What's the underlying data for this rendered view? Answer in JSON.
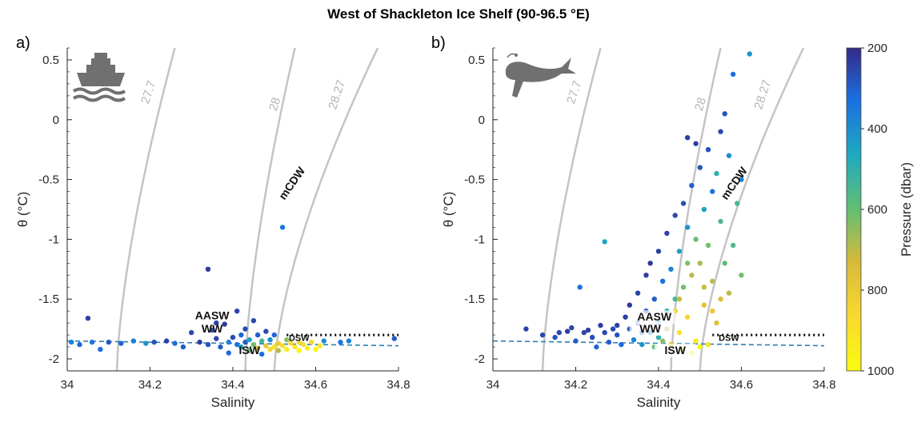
{
  "figure": {
    "title": "West of Shackleton Ice Shelf (90-96.5 °E)"
  },
  "colorbar": {
    "label": "Pressure (dbar)",
    "ticks": [
      "200",
      "400",
      "600",
      "800",
      "1000"
    ],
    "range": [
      200,
      1000
    ],
    "colormap": "parula",
    "colors": [
      "#352a87",
      "#1b6fe0",
      "#1ea9c0",
      "#62bf72",
      "#d6b93c",
      "#f9d92e",
      "#f9fb0e"
    ]
  },
  "icons": {
    "panel_a": "ship-icon",
    "panel_b": "seal-icon"
  },
  "chart_data": [
    {
      "type": "scatter",
      "panel": "a)",
      "platform_icon": "ship-icon",
      "xlabel": "Salinity",
      "ylabel": "θ (°C)",
      "xlim": [
        34,
        34.8
      ],
      "ylim": [
        -2.1,
        0.6
      ],
      "xticks": [
        "34",
        "34.2",
        "34.4",
        "34.6",
        "34.8"
      ],
      "yticks": [
        "-2",
        "-1.5",
        "-1",
        "-0.5",
        "0",
        "0.5"
      ],
      "grid": false,
      "isopycnals": [
        "27.7",
        "28",
        "28.27"
      ],
      "water_masses": [
        "mCDW",
        "AASW",
        "WW",
        "ISW",
        "DSW"
      ],
      "reference_lines": [
        {
          "name": "freezing point",
          "style": "dashed",
          "color": "#2a7fb8",
          "x": [
            34.0,
            34.8
          ],
          "y": [
            -1.85,
            -1.89
          ]
        },
        {
          "name": "surface freezing threshold",
          "style": "dotted",
          "color": "#000000",
          "x": [
            34.53,
            34.8
          ],
          "y": [
            -1.8,
            -1.8
          ]
        }
      ],
      "points": [
        [
          34.01,
          -1.86,
          380
        ],
        [
          34.03,
          -1.88,
          320
        ],
        [
          34.05,
          -1.66,
          240
        ],
        [
          34.06,
          -1.86,
          350
        ],
        [
          34.08,
          -1.92,
          330
        ],
        [
          34.1,
          -1.86,
          290
        ],
        [
          34.13,
          -1.87,
          310
        ],
        [
          34.16,
          -1.85,
          360
        ],
        [
          34.19,
          -1.87,
          420
        ],
        [
          34.21,
          -1.86,
          280
        ],
        [
          34.24,
          -1.85,
          250
        ],
        [
          34.26,
          -1.87,
          330
        ],
        [
          34.28,
          -1.9,
          300
        ],
        [
          34.3,
          -1.78,
          260
        ],
        [
          34.32,
          -1.86,
          240
        ],
        [
          34.34,
          -1.25,
          230
        ],
        [
          34.34,
          -1.88,
          280
        ],
        [
          34.36,
          -1.83,
          250
        ],
        [
          34.37,
          -1.9,
          300
        ],
        [
          34.38,
          -1.71,
          230
        ],
        [
          34.39,
          -1.95,
          330
        ],
        [
          34.4,
          -1.82,
          260
        ],
        [
          34.41,
          -1.6,
          250
        ],
        [
          34.41,
          -1.88,
          350
        ],
        [
          34.42,
          -1.9,
          450
        ],
        [
          34.43,
          -1.75,
          270
        ],
        [
          34.43,
          -1.86,
          300
        ],
        [
          34.44,
          -1.93,
          600
        ],
        [
          34.45,
          -1.68,
          260
        ],
        [
          34.45,
          -1.88,
          620
        ],
        [
          34.46,
          -1.91,
          750
        ],
        [
          34.46,
          -1.8,
          300
        ],
        [
          34.47,
          -1.85,
          540
        ],
        [
          34.47,
          -1.96,
          330
        ],
        [
          34.48,
          -1.89,
          800
        ],
        [
          34.48,
          -1.77,
          260
        ],
        [
          34.49,
          -1.92,
          850
        ],
        [
          34.49,
          -1.84,
          400
        ],
        [
          34.5,
          -1.9,
          900
        ],
        [
          34.5,
          -1.8,
          320
        ],
        [
          34.51,
          -1.87,
          820
        ],
        [
          34.51,
          -1.93,
          700
        ],
        [
          34.52,
          -0.9,
          350
        ],
        [
          34.52,
          -1.89,
          880
        ],
        [
          34.53,
          -1.84,
          650
        ],
        [
          34.53,
          -1.92,
          950
        ],
        [
          34.54,
          -1.87,
          880
        ],
        [
          34.55,
          -1.9,
          920
        ],
        [
          34.56,
          -1.86,
          850
        ],
        [
          34.56,
          -1.93,
          980
        ],
        [
          34.57,
          -1.88,
          900
        ],
        [
          34.58,
          -1.91,
          960
        ],
        [
          34.59,
          -1.86,
          870
        ],
        [
          34.6,
          -1.92,
          990
        ],
        [
          34.61,
          -1.89,
          930
        ],
        [
          34.62,
          -1.85,
          400
        ],
        [
          34.66,
          -1.86,
          350
        ],
        [
          34.68,
          -1.85,
          380
        ],
        [
          34.79,
          -1.83,
          300
        ],
        [
          34.36,
          -1.7,
          240
        ],
        [
          34.35,
          -1.76,
          260
        ],
        [
          34.44,
          -1.84,
          450
        ],
        [
          34.42,
          -1.8,
          320
        ],
        [
          34.39,
          -1.86,
          380
        ]
      ]
    },
    {
      "type": "scatter",
      "panel": "b)",
      "platform_icon": "seal-icon",
      "xlabel": "Salinity",
      "ylabel": "θ (°C)",
      "xlim": [
        34,
        34.8
      ],
      "ylim": [
        -2.1,
        0.6
      ],
      "xticks": [
        "34",
        "34.2",
        "34.4",
        "34.6",
        "34.8"
      ],
      "yticks": [
        "-2",
        "-1.5",
        "-1",
        "-0.5",
        "0",
        "0.5"
      ],
      "grid": false,
      "isopycnals": [
        "27.7",
        "28",
        "28.27"
      ],
      "water_masses": [
        "mCDW",
        "AASW",
        "WW",
        "ISW",
        "DSW"
      ],
      "reference_lines": [
        {
          "name": "freezing point",
          "style": "dashed",
          "color": "#2a7fb8",
          "x": [
            34.0,
            34.8
          ],
          "y": [
            -1.85,
            -1.89
          ]
        },
        {
          "name": "surface freezing threshold",
          "style": "dotted",
          "color": "#000000",
          "x": [
            34.53,
            34.8
          ],
          "y": [
            -1.8,
            -1.8
          ]
        }
      ],
      "points": [
        [
          34.08,
          -1.75,
          250
        ],
        [
          34.12,
          -1.8,
          260
        ],
        [
          34.15,
          -1.82,
          280
        ],
        [
          34.18,
          -1.77,
          240
        ],
        [
          34.2,
          -1.85,
          300
        ],
        [
          34.21,
          -1.4,
          350
        ],
        [
          34.22,
          -1.78,
          250
        ],
        [
          34.24,
          -1.82,
          270
        ],
        [
          34.25,
          -1.9,
          320
        ],
        [
          34.26,
          -1.72,
          240
        ],
        [
          34.27,
          -1.02,
          450
        ],
        [
          34.28,
          -1.86,
          300
        ],
        [
          34.29,
          -1.75,
          260
        ],
        [
          34.3,
          -1.8,
          280
        ],
        [
          34.31,
          -1.88,
          330
        ],
        [
          34.32,
          -1.65,
          240
        ],
        [
          34.33,
          -1.55,
          230
        ],
        [
          34.34,
          -1.84,
          380
        ],
        [
          34.35,
          -1.45,
          250
        ],
        [
          34.35,
          -1.7,
          270
        ],
        [
          34.36,
          -1.88,
          420
        ],
        [
          34.37,
          -1.3,
          240
        ],
        [
          34.37,
          -1.6,
          300
        ],
        [
          34.38,
          -1.78,
          400
        ],
        [
          34.38,
          -1.2,
          230
        ],
        [
          34.39,
          -1.9,
          600
        ],
        [
          34.39,
          -1.5,
          300
        ],
        [
          34.4,
          -1.1,
          240
        ],
        [
          34.4,
          -1.7,
          420
        ],
        [
          34.41,
          -1.85,
          650
        ],
        [
          34.41,
          -1.35,
          330
        ],
        [
          34.42,
          -0.95,
          250
        ],
        [
          34.42,
          -1.6,
          450
        ],
        [
          34.43,
          -1.88,
          800
        ],
        [
          34.43,
          -1.25,
          380
        ],
        [
          34.44,
          -0.8,
          260
        ],
        [
          34.44,
          -1.5,
          550
        ],
        [
          34.45,
          -1.78,
          900
        ],
        [
          34.45,
          -1.1,
          450
        ],
        [
          34.46,
          -0.7,
          270
        ],
        [
          34.46,
          -1.4,
          620
        ],
        [
          34.47,
          -0.15,
          240
        ],
        [
          34.47,
          -1.65,
          850
        ],
        [
          34.47,
          -0.9,
          420
        ],
        [
          34.48,
          -1.3,
          700
        ],
        [
          34.48,
          -0.55,
          300
        ],
        [
          34.49,
          -1.85,
          950
        ],
        [
          34.49,
          -1.0,
          600
        ],
        [
          34.5,
          -0.4,
          280
        ],
        [
          34.5,
          -1.2,
          680
        ],
        [
          34.51,
          -0.75,
          450
        ],
        [
          34.51,
          -1.55,
          780
        ],
        [
          34.52,
          -0.25,
          280
        ],
        [
          34.52,
          -1.05,
          620
        ],
        [
          34.53,
          -0.6,
          350
        ],
        [
          34.53,
          -1.35,
          700
        ],
        [
          34.54,
          -0.45,
          500
        ],
        [
          34.55,
          -0.85,
          560
        ],
        [
          34.55,
          -0.1,
          260
        ],
        [
          34.56,
          0.05,
          280
        ],
        [
          34.56,
          -1.2,
          600
        ],
        [
          34.57,
          -0.3,
          400
        ],
        [
          34.58,
          0.38,
          330
        ],
        [
          34.59,
          -0.7,
          550
        ],
        [
          34.6,
          -0.5,
          380
        ],
        [
          34.62,
          0.55,
          420
        ],
        [
          34.58,
          -1.05,
          560
        ],
        [
          34.57,
          -1.45,
          700
        ],
        [
          34.54,
          -1.7,
          760
        ],
        [
          34.52,
          -1.88,
          900
        ],
        [
          34.5,
          -1.9,
          980
        ],
        [
          34.46,
          -1.92,
          1000
        ],
        [
          34.44,
          -1.6,
          820
        ],
        [
          34.42,
          -1.75,
          700
        ],
        [
          34.4,
          -1.82,
          500
        ],
        [
          34.36,
          -1.78,
          320
        ],
        [
          34.33,
          -1.75,
          280
        ],
        [
          34.3,
          -1.72,
          250
        ],
        [
          34.27,
          -1.78,
          260
        ],
        [
          34.23,
          -1.76,
          240
        ],
        [
          34.19,
          -1.74,
          250
        ],
        [
          34.16,
          -1.78,
          260
        ],
        [
          34.48,
          -1.95,
          950
        ],
        [
          34.45,
          -1.5,
          720
        ],
        [
          34.47,
          -1.2,
          640
        ],
        [
          34.49,
          -0.2,
          240
        ],
        [
          34.51,
          -1.4,
          720
        ],
        [
          34.53,
          -1.6,
          800
        ],
        [
          34.55,
          -1.5,
          760
        ],
        [
          34.6,
          -1.3,
          620
        ]
      ]
    }
  ]
}
